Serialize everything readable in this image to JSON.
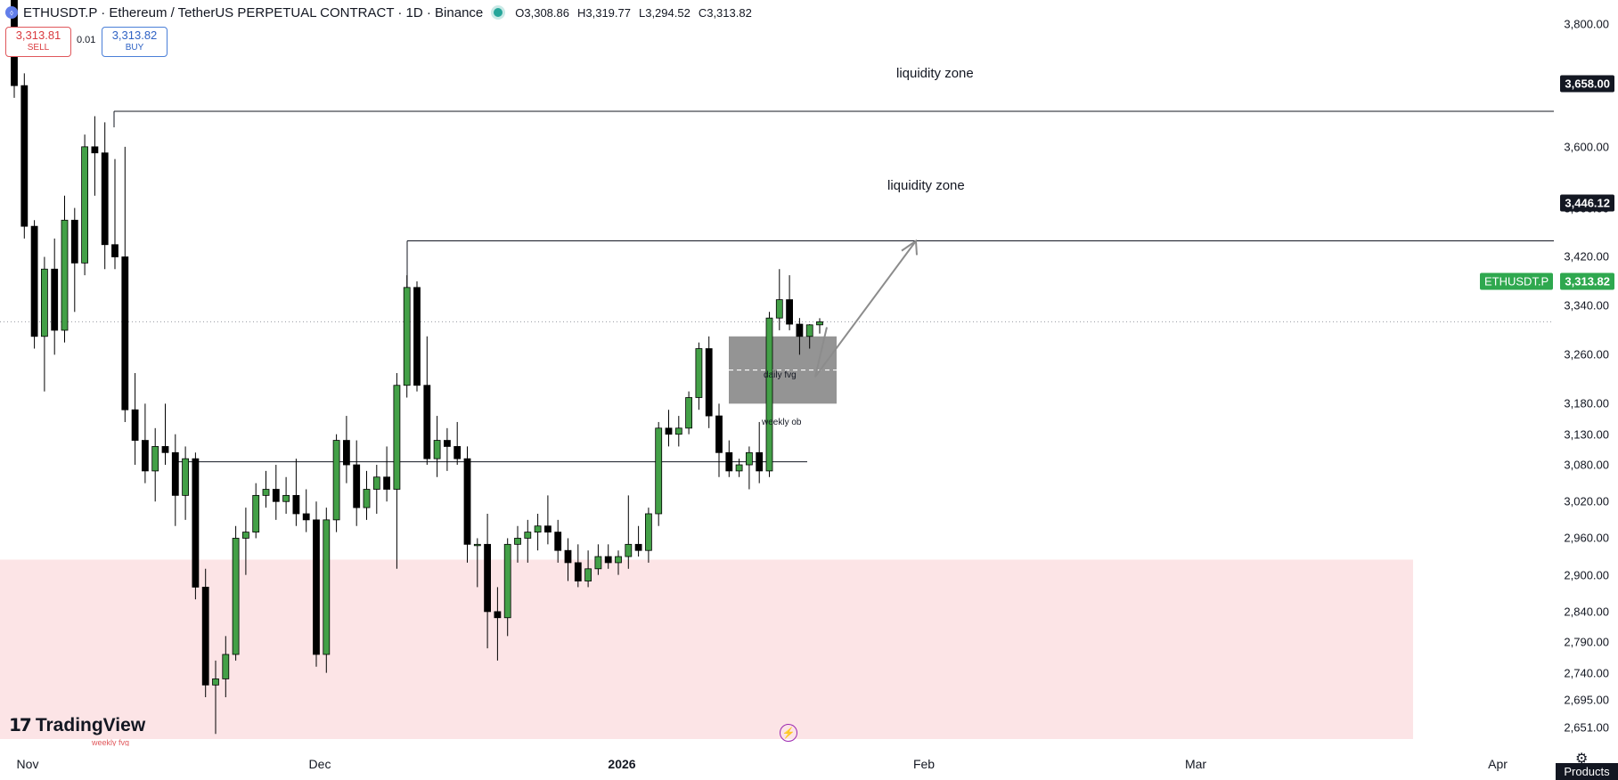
{
  "header": {
    "title": "ETHUSDT.P · Ethereum / TetherUS PERPETUAL CONTRACT · 1D · Binance",
    "symbol_icon": "ethereum-icon",
    "ohlc": {
      "open": "O3,308.86",
      "high": "H3,319.77",
      "low": "L3,294.52",
      "close": "C3,313.82"
    }
  },
  "trade": {
    "sell_price": "3,313.81",
    "sell_label": "SELL",
    "spread": "0.01",
    "buy_price": "3,313.82",
    "buy_label": "BUY"
  },
  "colors": {
    "bull": "#43a047",
    "bear": "#000000",
    "wick": "#000000",
    "zone": "#fce4e6",
    "fvg": "#8e8e8e",
    "accent": "#2fa84f"
  },
  "price_axis": {
    "ticks": [
      "3,800.00",
      "3,700.00",
      "3,600.00",
      "3,500.00",
      "3,420.00",
      "3,340.00",
      "3,260.00",
      "3,180.00",
      "3,130.00",
      "3,080.00",
      "3,020.00",
      "2,960.00",
      "2,900.00",
      "2,840.00",
      "2,790.00",
      "2,740.00",
      "2,695.00",
      "2,651.00"
    ],
    "labels": {
      "zone_high": "3,658.00",
      "zone_mid": "3,446.12",
      "last": "3,313.82"
    },
    "symbol_badge": "ETHUSDT.P"
  },
  "time_axis": {
    "ticks": [
      "Nov",
      "Dec",
      "2026",
      "Feb",
      "Mar",
      "Apr"
    ]
  },
  "annotations": {
    "liquidity_zone_1": "liquidity zone",
    "liquidity_zone_2": "liquidity zone",
    "daily_fvg": "daily fvg",
    "weekly_ob": "weekly ob",
    "weekly_fvg": "weekly fvg"
  },
  "branding": {
    "name": "TradingView"
  },
  "footer": {
    "products_label": "Products"
  },
  "chart_data": {
    "type": "candlestick",
    "ohlc": [
      [
        3840,
        3845,
        3680,
        3700
      ],
      [
        3700,
        3720,
        3450,
        3470
      ],
      [
        3470,
        3480,
        3270,
        3290
      ],
      [
        3290,
        3420,
        3200,
        3400
      ],
      [
        3400,
        3450,
        3260,
        3300
      ],
      [
        3300,
        3520,
        3280,
        3480
      ],
      [
        3480,
        3500,
        3330,
        3410
      ],
      [
        3410,
        3620,
        3390,
        3600
      ],
      [
        3600,
        3650,
        3520,
        3590
      ],
      [
        3590,
        3640,
        3400,
        3440
      ],
      [
        3440,
        3580,
        3400,
        3420
      ],
      [
        3420,
        3600,
        3150,
        3170
      ],
      [
        3170,
        3230,
        3080,
        3120
      ],
      [
        3120,
        3180,
        3050,
        3070
      ],
      [
        3070,
        3140,
        3020,
        3110
      ],
      [
        3110,
        3180,
        3080,
        3100
      ],
      [
        3100,
        3130,
        2980,
        3030
      ],
      [
        3030,
        3110,
        2990,
        3090
      ],
      [
        3090,
        3100,
        2860,
        2880
      ],
      [
        2880,
        2910,
        2700,
        2720
      ],
      [
        2720,
        2760,
        2640,
        2730
      ],
      [
        2730,
        2800,
        2700,
        2770
      ],
      [
        2770,
        2980,
        2760,
        2960
      ],
      [
        2960,
        3010,
        2900,
        2970
      ],
      [
        2970,
        3050,
        2960,
        3030
      ],
      [
        3030,
        3070,
        3010,
        3040
      ],
      [
        3040,
        3080,
        2990,
        3020
      ],
      [
        3020,
        3060,
        3000,
        3030
      ],
      [
        3030,
        3090,
        2980,
        3000
      ],
      [
        3000,
        3040,
        2970,
        2990
      ],
      [
        2990,
        3020,
        2750,
        2770
      ],
      [
        2770,
        3010,
        2740,
        2990
      ],
      [
        2990,
        3130,
        2970,
        3120
      ],
      [
        3120,
        3160,
        3050,
        3080
      ],
      [
        3080,
        3120,
        2980,
        3010
      ],
      [
        3010,
        3070,
        2990,
        3040
      ],
      [
        3040,
        3080,
        3000,
        3060
      ],
      [
        3060,
        3110,
        3020,
        3040
      ],
      [
        3040,
        3230,
        2910,
        3210
      ],
      [
        3210,
        3390,
        3190,
        3370
      ],
      [
        3370,
        3380,
        3200,
        3210
      ],
      [
        3210,
        3290,
        3080,
        3090
      ],
      [
        3090,
        3160,
        3060,
        3120
      ],
      [
        3120,
        3140,
        3070,
        3110
      ],
      [
        3110,
        3150,
        3080,
        3090
      ],
      [
        3090,
        3110,
        2920,
        2950
      ],
      [
        2950,
        2960,
        2880,
        2950
      ],
      [
        2950,
        3000,
        2780,
        2840
      ],
      [
        2840,
        2880,
        2760,
        2830
      ],
      [
        2830,
        2960,
        2800,
        2950
      ],
      [
        2950,
        2980,
        2920,
        2960
      ],
      [
        2960,
        2990,
        2920,
        2970
      ],
      [
        2970,
        3000,
        2940,
        2980
      ],
      [
        2980,
        3030,
        2950,
        2970
      ],
      [
        2970,
        2990,
        2920,
        2940
      ],
      [
        2940,
        2960,
        2890,
        2920
      ],
      [
        2920,
        2950,
        2880,
        2890
      ],
      [
        2890,
        2940,
        2880,
        2910
      ],
      [
        2910,
        2950,
        2900,
        2930
      ],
      [
        2930,
        2950,
        2910,
        2920
      ],
      [
        2920,
        2940,
        2900,
        2930
      ],
      [
        2930,
        3030,
        2910,
        2950
      ],
      [
        2950,
        2980,
        2930,
        2940
      ],
      [
        2940,
        3010,
        2920,
        3000
      ],
      [
        3000,
        3150,
        2980,
        3140
      ],
      [
        3140,
        3170,
        3110,
        3130
      ],
      [
        3130,
        3160,
        3110,
        3140
      ],
      [
        3140,
        3200,
        3130,
        3190
      ],
      [
        3190,
        3280,
        3170,
        3270
      ],
      [
        3270,
        3290,
        3140,
        3160
      ],
      [
        3160,
        3180,
        3060,
        3100
      ],
      [
        3100,
        3120,
        3060,
        3070
      ],
      [
        3070,
        3090,
        3060,
        3080
      ],
      [
        3080,
        3110,
        3040,
        3100
      ],
      [
        3100,
        3150,
        3050,
        3070
      ],
      [
        3070,
        3330,
        3060,
        3320
      ],
      [
        3320,
        3400,
        3300,
        3350
      ],
      [
        3350,
        3390,
        3300,
        3310
      ],
      [
        3310,
        3320,
        3260,
        3290
      ],
      [
        3290,
        3310,
        3270,
        3308.86
      ],
      [
        3308.86,
        3319.77,
        3294.52,
        3313.82
      ]
    ],
    "ylim": [
      2620,
      3840
    ],
    "levels": [
      3658.0,
      3446.12,
      3313.82,
      3085
    ],
    "zones": [
      {
        "name": "weekly fvg",
        "from": 2620,
        "to": 2925
      },
      {
        "name": "daily fvg",
        "from": 3180,
        "to": 3290
      }
    ]
  }
}
